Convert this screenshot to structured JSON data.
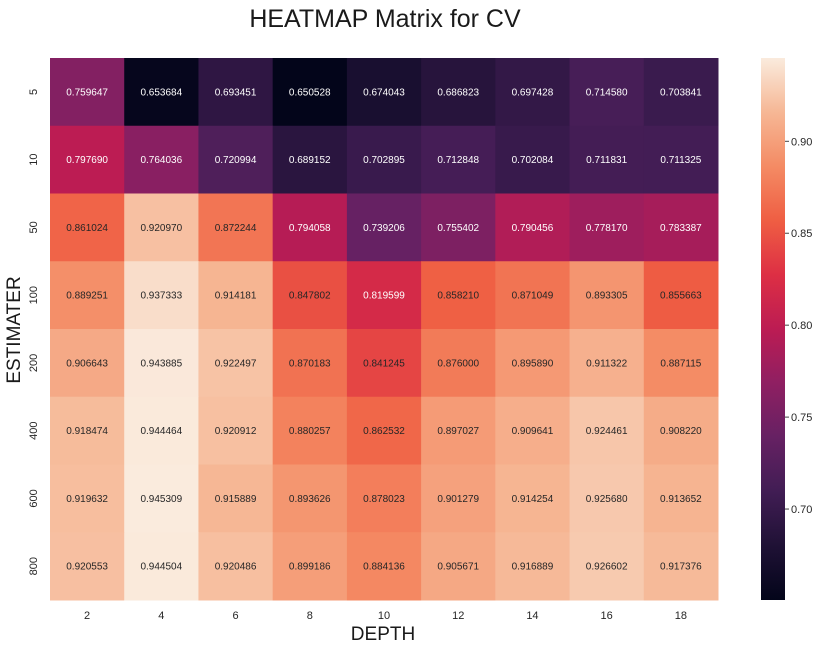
{
  "chart_data": {
    "type": "heatmap",
    "title": "HEATMAP Matrix for CV",
    "xlabel": "DEPTH",
    "ylabel": "ESTIMATER",
    "x_categories": [
      "2",
      "4",
      "6",
      "8",
      "10",
      "12",
      "14",
      "16",
      "18"
    ],
    "y_categories": [
      "5",
      "10",
      "50",
      "100",
      "200",
      "400",
      "600",
      "800"
    ],
    "values": [
      [
        0.759647,
        0.653684,
        0.693451,
        0.650528,
        0.674043,
        0.686823,
        0.697428,
        0.71458,
        0.703841
      ],
      [
        0.79769,
        0.764036,
        0.720994,
        0.689152,
        0.702895,
        0.712848,
        0.702084,
        0.711831,
        0.711325
      ],
      [
        0.861024,
        0.92097,
        0.872244,
        0.794058,
        0.739206,
        0.755402,
        0.790456,
        0.77817,
        0.783387
      ],
      [
        0.889251,
        0.937333,
        0.914181,
        0.847802,
        0.819599,
        0.85821,
        0.871049,
        0.893305,
        0.855663
      ],
      [
        0.906643,
        0.943885,
        0.922497,
        0.870183,
        0.841245,
        0.876,
        0.89589,
        0.911322,
        0.887115
      ],
      [
        0.918474,
        0.944464,
        0.920912,
        0.880257,
        0.862532,
        0.897027,
        0.909641,
        0.924461,
        0.90822
      ],
      [
        0.919632,
        0.945309,
        0.915889,
        0.893626,
        0.878023,
        0.901279,
        0.914254,
        0.92568,
        0.913652
      ],
      [
        0.920553,
        0.944504,
        0.920486,
        0.899186,
        0.884136,
        0.905671,
        0.916889,
        0.926602,
        0.917376
      ]
    ],
    "value_labels": [
      [
        "0.759647",
        "0.653684",
        "0.693451",
        "0.650528",
        "0.674043",
        "0.686823",
        "0.697428",
        "0.714580",
        "0.703841"
      ],
      [
        "0.797690",
        "0.764036",
        "0.720994",
        "0.689152",
        "0.702895",
        "0.712848",
        "0.702084",
        "0.711831",
        "0.711325"
      ],
      [
        "0.861024",
        "0.920970",
        "0.872244",
        "0.794058",
        "0.739206",
        "0.755402",
        "0.790456",
        "0.778170",
        "0.783387"
      ],
      [
        "0.889251",
        "0.937333",
        "0.914181",
        "0.847802",
        "0.819599",
        "0.858210",
        "0.871049",
        "0.893305",
        "0.855663"
      ],
      [
        "0.906643",
        "0.943885",
        "0.922497",
        "0.870183",
        "0.841245",
        "0.876000",
        "0.895890",
        "0.911322",
        "0.887115"
      ],
      [
        "0.918474",
        "0.944464",
        "0.920912",
        "0.880257",
        "0.862532",
        "0.897027",
        "0.909641",
        "0.924461",
        "0.908220"
      ],
      [
        "0.919632",
        "0.945309",
        "0.915889",
        "0.893626",
        "0.878023",
        "0.901279",
        "0.914254",
        "0.925680",
        "0.913652"
      ],
      [
        "0.920553",
        "0.944504",
        "0.920486",
        "0.899186",
        "0.884136",
        "0.905671",
        "0.916889",
        "0.926602",
        "0.917376"
      ]
    ],
    "colorbar": {
      "ticks": [
        0.7,
        0.75,
        0.8,
        0.85,
        0.9
      ],
      "tick_labels": [
        "0.70",
        "0.75",
        "0.80",
        "0.85",
        "0.90"
      ],
      "range": [
        0.650528,
        0.945309
      ],
      "placement": "right"
    },
    "colormap": "rocket",
    "grid": false
  }
}
